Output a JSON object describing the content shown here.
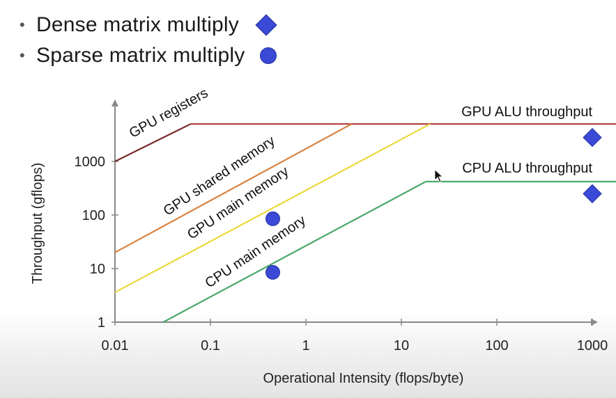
{
  "legend": {
    "items": [
      {
        "bullet": "•",
        "label": "Dense matrix multiply",
        "marker": "diamond"
      },
      {
        "bullet": "•",
        "label": "Sparse matrix multiply",
        "marker": "circle"
      }
    ]
  },
  "colors": {
    "marker": "#3a49d6",
    "gpu_alu": "#b03a3a",
    "gpu_registers": "#7a2a2a",
    "gpu_shared": "#d9823f",
    "gpu_main": "#ecd93c",
    "cpu_main": "#4aa86a",
    "axis": "#888888"
  },
  "chart_data": {
    "type": "line",
    "xlabel": "Operational Intensity (flops/byte)",
    "ylabel": "Throughput (gflops)",
    "x_scale": "log",
    "y_scale": "log",
    "x_ticks": [
      "0.01",
      "0.1",
      "1",
      "10",
      "100",
      "1000"
    ],
    "y_ticks": [
      "1",
      "10",
      "100",
      "1000"
    ],
    "xlim": [
      0.01,
      2000
    ],
    "ylim": [
      1,
      10000
    ],
    "series": [
      {
        "name": "GPU ALU throughput",
        "x": [
          0.062,
          2000
        ],
        "y": [
          5000,
          5000
        ],
        "color_key": "gpu_alu"
      },
      {
        "name": "CPU ALU throughput",
        "x": [
          18,
          2000
        ],
        "y": [
          420,
          420
        ],
        "color_key": "cpu_main"
      },
      {
        "name": "GPU registers",
        "x": [
          0.01,
          0.062
        ],
        "y": [
          1000,
          5000
        ],
        "color_key": "gpu_registers"
      },
      {
        "name": "GPU shared memory",
        "x": [
          0.01,
          3.0
        ],
        "y": [
          20,
          5000
        ],
        "color_key": "gpu_shared"
      },
      {
        "name": "GPU main memory",
        "x": [
          0.01,
          20
        ],
        "y": [
          3.6,
          5000
        ],
        "color_key": "gpu_main"
      },
      {
        "name": "CPU main memory",
        "x": [
          0.032,
          18
        ],
        "y": [
          1,
          420
        ],
        "color_key": "cpu_main"
      }
    ],
    "points": [
      {
        "kind": "dense",
        "marker": "diamond",
        "x": 1000,
        "y": 2800
      },
      {
        "kind": "dense",
        "marker": "diamond",
        "x": 1000,
        "y": 250
      },
      {
        "kind": "sparse",
        "marker": "circle",
        "x": 0.45,
        "y": 85
      },
      {
        "kind": "sparse",
        "marker": "circle",
        "x": 0.45,
        "y": 8.5
      }
    ]
  }
}
